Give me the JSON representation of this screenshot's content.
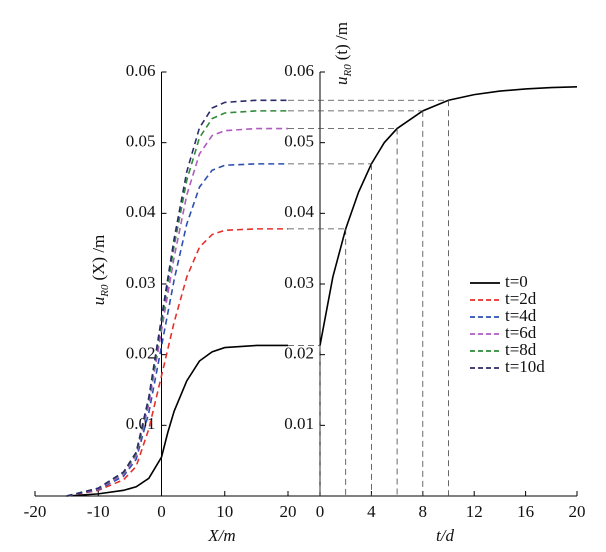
{
  "chart_data": [
    {
      "type": "line",
      "xlabel": "X/m",
      "ylabel": {
        "main": "u",
        "sub": "R0",
        "rest": "(X) /m"
      },
      "x": [
        -15,
        -10,
        -6,
        -4,
        -2,
        0,
        1,
        2,
        4,
        6,
        8,
        10,
        15,
        20
      ],
      "series": [
        {
          "name": "t=0",
          "color": "#000000",
          "dashed": false,
          "values": [
            0,
            0.0003,
            0.0008,
            0.0013,
            0.0025,
            0.0055,
            0.009,
            0.012,
            0.0163,
            0.0191,
            0.0204,
            0.021,
            0.0213,
            0.0213
          ]
        },
        {
          "name": "t=2d",
          "color": "#e8302a",
          "dashed": true,
          "values": [
            0,
            0.0008,
            0.0023,
            0.0042,
            0.0095,
            0.017,
            0.0208,
            0.0246,
            0.031,
            0.0352,
            0.037,
            0.0376,
            0.0378,
            0.0378
          ]
        },
        {
          "name": "t=4d",
          "color": "#2c4fb0",
          "dashed": true,
          "values": [
            0,
            0.0009,
            0.0028,
            0.0052,
            0.0118,
            0.0212,
            0.0259,
            0.0306,
            0.0385,
            0.0437,
            0.0461,
            0.0468,
            0.047,
            0.047
          ]
        },
        {
          "name": "t=6d",
          "color": "#b05ac0",
          "dashed": true,
          "values": [
            0,
            0.001,
            0.0031,
            0.0057,
            0.013,
            0.0234,
            0.0286,
            0.0338,
            0.0426,
            0.0484,
            0.051,
            0.0517,
            0.052,
            0.052
          ]
        },
        {
          "name": "t=8d",
          "color": "#2f8a3a",
          "dashed": true,
          "values": [
            0,
            0.0011,
            0.0033,
            0.006,
            0.0136,
            0.0245,
            0.03,
            0.0354,
            0.0447,
            0.0507,
            0.0534,
            0.0542,
            0.0545,
            0.0545
          ]
        },
        {
          "name": "t=10d",
          "color": "#2b2a6b",
          "dashed": true,
          "values": [
            0,
            0.0011,
            0.0034,
            0.0062,
            0.014,
            0.0252,
            0.0308,
            0.0364,
            0.0459,
            0.0521,
            0.0549,
            0.0557,
            0.056,
            0.056
          ]
        }
      ],
      "xlim": [
        -20,
        20
      ],
      "xticks": [
        -20,
        -10,
        0,
        10,
        20
      ],
      "ylim": [
        0,
        0.06
      ],
      "yticks": [
        0.01,
        0.02,
        0.03,
        0.04,
        0.05,
        0.06
      ]
    },
    {
      "type": "line",
      "xlabel": "t/d",
      "ylabel": {
        "main": "u",
        "sub": "R0",
        "rest": "(t) /m"
      },
      "x": [
        0,
        1,
        2,
        3,
        4,
        5,
        6,
        8,
        10,
        12,
        14,
        16,
        18,
        20
      ],
      "series": [
        {
          "color": "#000000",
          "values": [
            0.0213,
            0.031,
            0.0378,
            0.043,
            0.047,
            0.05,
            0.052,
            0.0545,
            0.056,
            0.0568,
            0.0573,
            0.0576,
            0.0578,
            0.0579
          ]
        }
      ],
      "xlim": [
        0,
        20
      ],
      "xticks": [
        0,
        4,
        8,
        12,
        16,
        20
      ],
      "ylim": [
        0,
        0.06
      ],
      "yticks": [
        0.01,
        0.02,
        0.03,
        0.04,
        0.05,
        0.06
      ]
    }
  ]
}
